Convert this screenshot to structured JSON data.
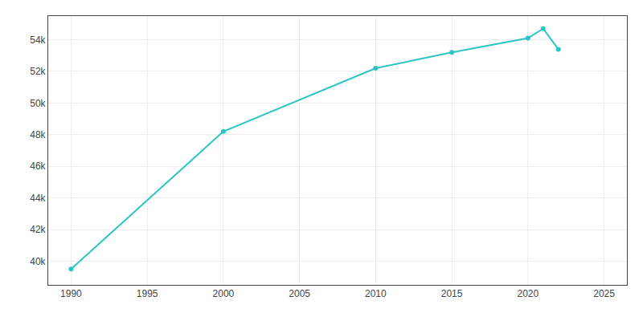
{
  "chart_data": {
    "type": "line",
    "x": [
      1990,
      2000,
      2010,
      2015,
      2020,
      2021,
      2022
    ],
    "values": [
      39500,
      48200,
      52200,
      53200,
      54100,
      54700,
      53400
    ],
    "color": "#2dc4c4",
    "marker": "circle",
    "xlim": [
      1988.5,
      2026.5
    ],
    "xticks": [
      1990,
      1995,
      2000,
      2005,
      2010,
      2015,
      2020,
      2025
    ],
    "ylim": [
      38500,
      55500
    ],
    "yticks": [
      {
        "value": 40000,
        "label": "40k"
      },
      {
        "value": 42000,
        "label": "42k"
      },
      {
        "value": 44000,
        "label": "44k"
      },
      {
        "value": 46000,
        "label": "46k"
      },
      {
        "value": 48000,
        "label": "48k"
      },
      {
        "value": 50000,
        "label": "50k"
      },
      {
        "value": 52000,
        "label": "52k"
      },
      {
        "value": 54000,
        "label": "54k"
      }
    ],
    "grid": true
  }
}
